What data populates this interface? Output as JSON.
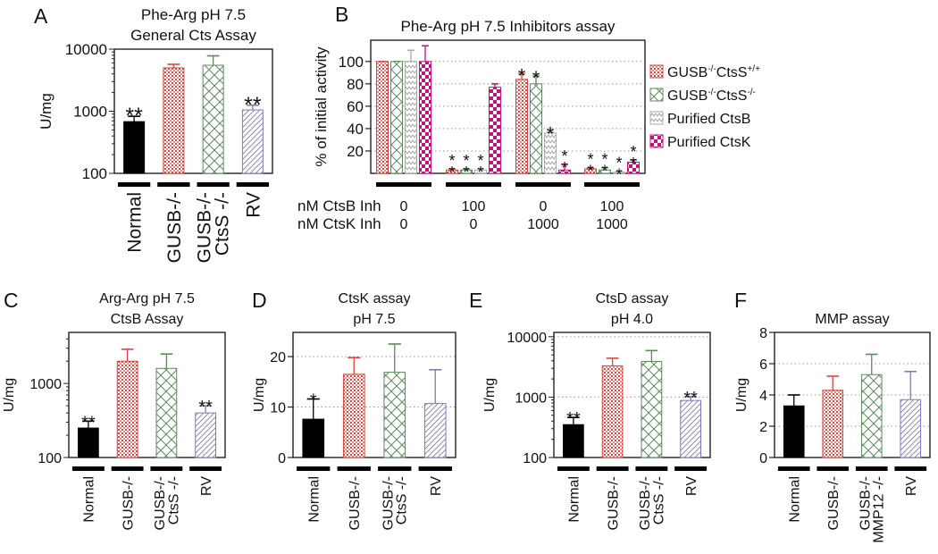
{
  "chart_data": [
    {
      "panel": "A",
      "type": "bar",
      "title": [
        "Phe-Arg pH 7.5",
        "General Cts Assay"
      ],
      "ylabel": "U/mg",
      "yscale": "log",
      "ylim": [
        100,
        10000
      ],
      "yticks": [
        100,
        1000,
        10000
      ],
      "ytick_labels": [
        "100",
        "1000",
        "10000"
      ],
      "grid": [],
      "categories": [
        [
          "Normal"
        ],
        [
          "GUSB-/-"
        ],
        [
          "GUSB-/-",
          "CtsS -/-"
        ],
        [
          "RV"
        ]
      ],
      "values": [
        680,
        5000,
        5500,
        1050
      ],
      "error_upper": [
        830,
        5700,
        7800,
        1250
      ],
      "significance": [
        "**",
        "",
        "",
        "**"
      ],
      "patterns": [
        "solid",
        "dots",
        "lattice",
        "diag"
      ]
    },
    {
      "panel": "B",
      "type": "bar",
      "title": [
        "Phe-Arg pH 7.5 Inhibitors assay"
      ],
      "ylabel": "% of initial activity",
      "yscale": "linear",
      "ylim": [
        0,
        119
      ],
      "yticks": [
        20,
        40,
        60,
        80,
        100
      ],
      "ytick_labels": [
        "20",
        "40",
        "60",
        "80",
        "100"
      ],
      "grid": [
        20,
        40,
        60,
        80,
        100
      ],
      "groups": 4,
      "series": [
        {
          "name": {
            "base": "GUSB",
            "sup1": "-/-",
            "mid": "CtsS",
            "sup2": "+/+"
          },
          "pattern": "dots",
          "values": [
            100,
            3,
            84,
            4
          ],
          "error_upper": [
            100,
            4,
            89,
            5
          ],
          "significance": [
            "",
            "**",
            "*",
            "**"
          ]
        },
        {
          "name": {
            "base": "GUSB",
            "sup1": "-/-",
            "mid": "CtsS",
            "sup2": "-/-"
          },
          "pattern": "lattice",
          "values": [
            100,
            3,
            80,
            3
          ],
          "error_upper": [
            100,
            4,
            87,
            5
          ],
          "significance": [
            "",
            "**",
            "*",
            "**"
          ]
        },
        {
          "name": {
            "base": "Purified CtsB",
            "sup1": "",
            "mid": "",
            "sup2": ""
          },
          "pattern": "zig",
          "values": [
            100,
            3,
            36,
            1
          ],
          "error_upper": [
            110,
            4,
            37,
            2
          ],
          "significance": [
            "",
            "**",
            "*",
            "**"
          ]
        },
        {
          "name": {
            "base": "Purified CtsK",
            "sup1": "",
            "mid": "",
            "sup2": ""
          },
          "pattern": "checker",
          "values": [
            100,
            77,
            3,
            10
          ],
          "error_upper": [
            114,
            80,
            8,
            12
          ],
          "significance": [
            "",
            "",
            "**",
            "**"
          ]
        }
      ],
      "inhibitors": [
        {
          "label": "nM CtsB Inh",
          "values": [
            "0",
            "100",
            "0",
            "100"
          ]
        },
        {
          "label": "nM CtsK Inh",
          "values": [
            "0",
            "0",
            "1000",
            "1000"
          ]
        }
      ],
      "legend": "right"
    },
    {
      "panel": "C",
      "type": "bar",
      "title": [
        "Arg-Arg pH 7.5",
        "CtsB Assay"
      ],
      "ylabel": "U/mg",
      "yscale": "log",
      "ylim": [
        100,
        4900
      ],
      "yticks": [
        100,
        1000
      ],
      "ytick_labels": [
        "100",
        "1000"
      ],
      "grid": [],
      "categories": [
        [
          "Normal"
        ],
        [
          "GUSB-/-"
        ],
        [
          "GUSB-/-",
          "CtsS -/-"
        ],
        [
          "RV"
        ]
      ],
      "values": [
        250,
        2000,
        1600,
        400
      ],
      "error_upper": [
        310,
        2900,
        2500,
        500
      ],
      "significance": [
        "**",
        "",
        "",
        "**"
      ],
      "patterns": [
        "solid",
        "dots",
        "lattice",
        "diag"
      ]
    },
    {
      "panel": "D",
      "type": "bar",
      "title": [
        "CtsK assay",
        "pH 7.5"
      ],
      "ylabel": "U/mg",
      "yscale": "linear",
      "ylim": [
        0,
        24.8
      ],
      "yticks": [
        0,
        10,
        20
      ],
      "ytick_labels": [
        "0",
        "10",
        "20"
      ],
      "grid": [
        10,
        20
      ],
      "categories": [
        [
          "Normal"
        ],
        [
          "GUSB-/-"
        ],
        [
          "GUSB-/-",
          "CtsS -/-"
        ],
        [
          "RV"
        ]
      ],
      "values": [
        7.6,
        16.5,
        16.9,
        10.7
      ],
      "error_upper": [
        11.6,
        19.8,
        22.5,
        17.4
      ],
      "significance": [
        "*",
        "",
        "",
        ""
      ],
      "patterns": [
        "solid",
        "dots",
        "lattice",
        "diag"
      ]
    },
    {
      "panel": "E",
      "type": "bar",
      "title": [
        "CtsD  assay",
        "pH 4.0"
      ],
      "ylabel": "U/mg",
      "yscale": "log",
      "ylim": [
        100,
        11800
      ],
      "yticks": [
        100,
        1000,
        10000
      ],
      "ytick_labels": [
        "100",
        "1000",
        "10000"
      ],
      "grid": [
        1000,
        10000
      ],
      "categories": [
        [
          "Normal"
        ],
        [
          "GUSB-/-"
        ],
        [
          "GUSB-/-",
          "CtsS -/-"
        ],
        [
          "RV"
        ]
      ],
      "values": [
        350,
        3300,
        3900,
        880
      ],
      "error_upper": [
        460,
        4400,
        5900,
        1020
      ],
      "significance": [
        "**",
        "",
        "",
        "**"
      ],
      "patterns": [
        "solid",
        "dots",
        "lattice",
        "diag"
      ]
    },
    {
      "panel": "F",
      "type": "bar",
      "title": [
        "MMP assay"
      ],
      "ylabel": "U/mg",
      "yscale": "linear",
      "ylim": [
        0,
        8
      ],
      "yticks": [
        0,
        2,
        4,
        6,
        8
      ],
      "ytick_labels": [
        "0",
        "2",
        "4",
        "6",
        "8"
      ],
      "grid": [
        2,
        4,
        6
      ],
      "categories": [
        [
          "Normal"
        ],
        [
          "GUSB-/-"
        ],
        [
          "GUSB-/-",
          "MMP12 -/-"
        ],
        [
          "RV"
        ]
      ],
      "values": [
        3.3,
        4.3,
        5.3,
        3.7
      ],
      "error_upper": [
        4.0,
        5.2,
        6.6,
        5.5
      ],
      "significance": [
        "",
        "",
        "",
        ""
      ],
      "patterns": [
        "solid",
        "dots",
        "lattice",
        "diag"
      ]
    }
  ]
}
